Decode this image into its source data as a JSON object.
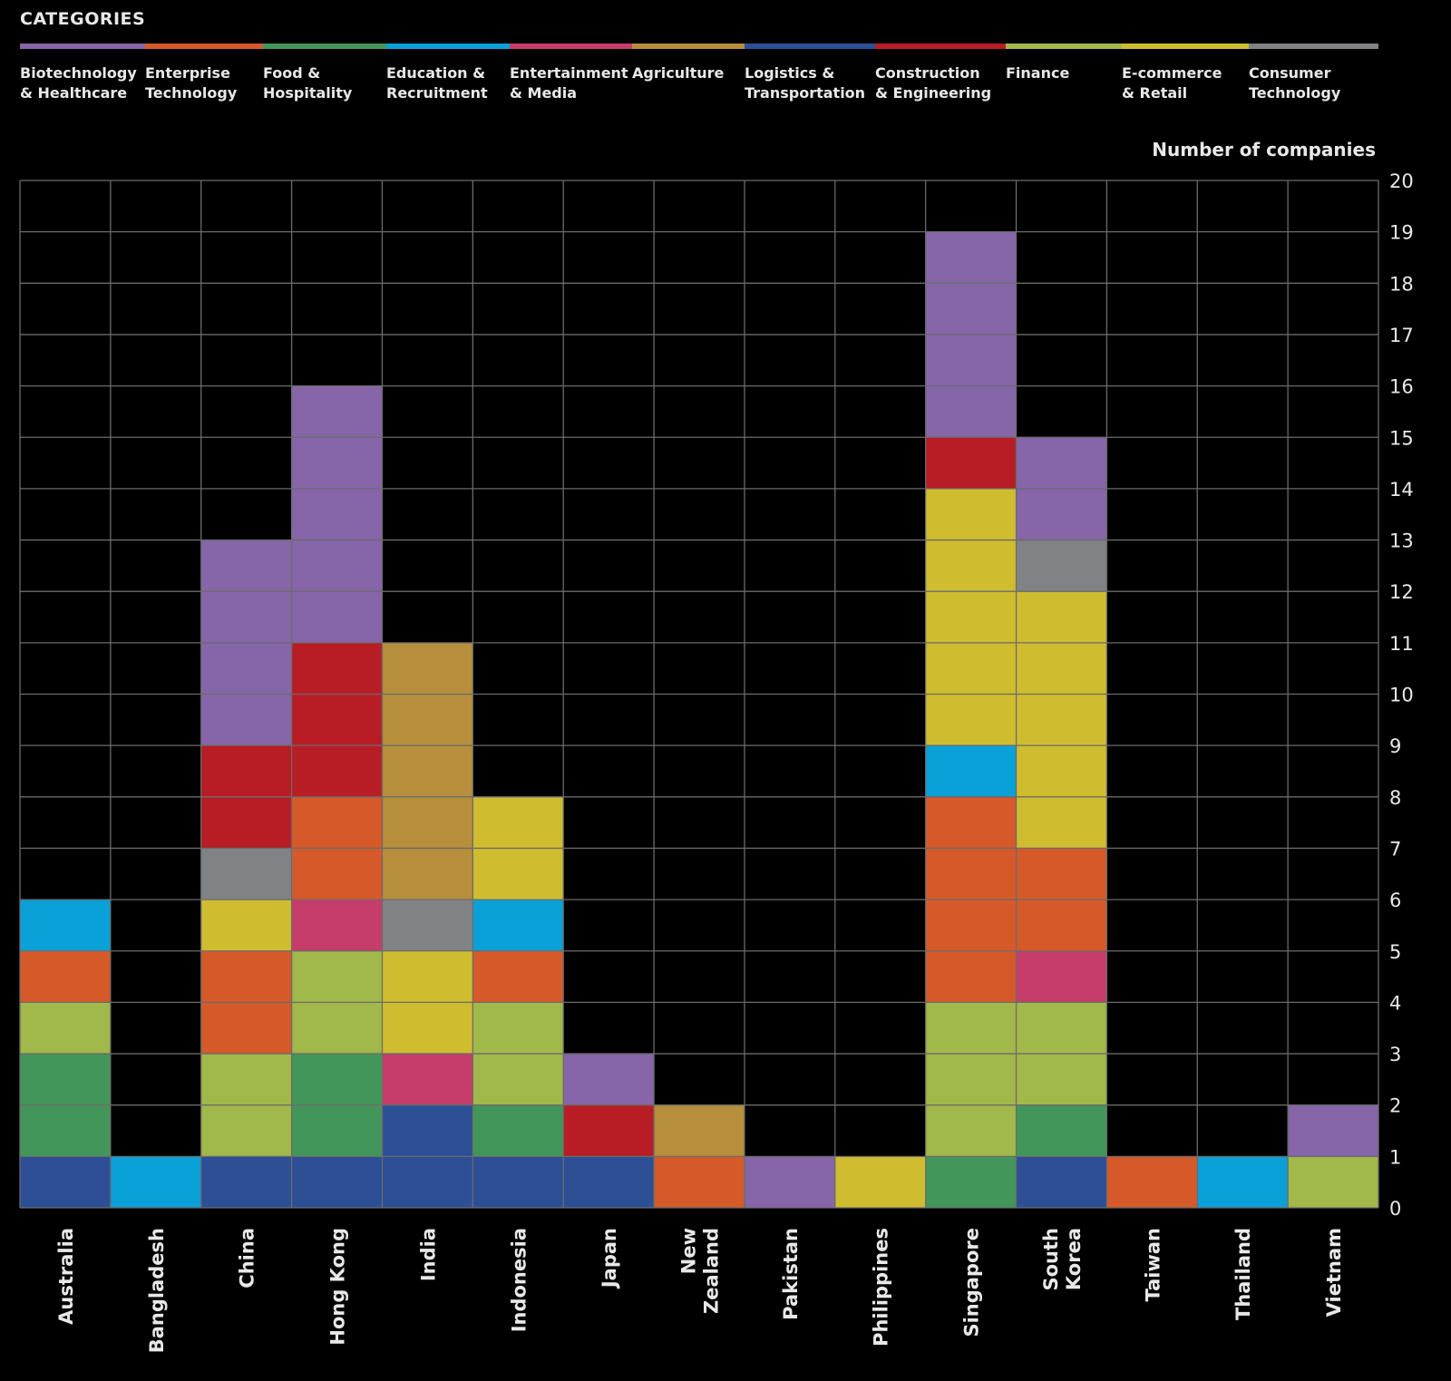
{
  "header": {
    "title": "CATEGORIES"
  },
  "categories": [
    {
      "label": [
        "Biotechnology",
        "& Healthcare"
      ],
      "color": "#8665a9"
    },
    {
      "label": [
        "Enterprise",
        "Technology"
      ],
      "color": "#d65a29"
    },
    {
      "label": [
        "Food &",
        "Hospitality"
      ],
      "color": "#43965a"
    },
    {
      "label": [
        "Education &",
        "Recruitment"
      ],
      "color": "#0aa0d8"
    },
    {
      "label": [
        "Entertainment",
        "& Media"
      ],
      "color": "#c63d6b"
    },
    {
      "label": [
        "Agriculture"
      ],
      "color": "#b68e3c"
    },
    {
      "label": [
        "Logistics &",
        "Transportation"
      ],
      "color": "#2c4f96"
    },
    {
      "label": [
        "Construction",
        "& Engineering"
      ],
      "color": "#b81c24"
    },
    {
      "label": [
        "Finance"
      ],
      "color": "#a1b84a"
    },
    {
      "label": [
        "E-commerce",
        "& Retail"
      ],
      "color": "#cfbd2f"
    },
    {
      "label": [
        "Consumer",
        "Technology"
      ],
      "color": "#808286"
    }
  ],
  "chart_data": {
    "type": "bar",
    "stacked": true,
    "ylabel": "Number of companies",
    "ylim": [
      0,
      20
    ],
    "yticks": [
      "0",
      "1",
      "2",
      "3",
      "4",
      "5",
      "6",
      "7",
      "8",
      "9",
      "10",
      "11",
      "12",
      "13",
      "14",
      "15",
      "16",
      "17",
      "18",
      "19",
      "20"
    ],
    "grid": true,
    "countries": [
      {
        "name": [
          "Australia"
        ],
        "stack": [
          {
            "category": "Logistics & Transportation",
            "value": 1
          },
          {
            "category": "Food & Hospitality",
            "value": 2
          },
          {
            "category": "Finance",
            "value": 1
          },
          {
            "category": "Enterprise Technology",
            "value": 1
          },
          {
            "category": "Education & Recruitment",
            "value": 1
          }
        ]
      },
      {
        "name": [
          "Bangladesh"
        ],
        "stack": [
          {
            "category": "Education & Recruitment",
            "value": 1
          }
        ]
      },
      {
        "name": [
          "China"
        ],
        "stack": [
          {
            "category": "Logistics & Transportation",
            "value": 1
          },
          {
            "category": "Finance",
            "value": 2
          },
          {
            "category": "Enterprise Technology",
            "value": 2
          },
          {
            "category": "E-commerce & Retail",
            "value": 1
          },
          {
            "category": "Consumer Technology",
            "value": 1
          },
          {
            "category": "Construction & Engineering",
            "value": 2
          },
          {
            "category": "Biotechnology & Healthcare",
            "value": 4
          }
        ]
      },
      {
        "name": [
          "Hong Kong"
        ],
        "stack": [
          {
            "category": "Logistics & Transportation",
            "value": 1
          },
          {
            "category": "Food & Hospitality",
            "value": 2
          },
          {
            "category": "Finance",
            "value": 2
          },
          {
            "category": "Entertainment & Media",
            "value": 1
          },
          {
            "category": "Enterprise Technology",
            "value": 2
          },
          {
            "category": "Construction & Engineering",
            "value": 3
          },
          {
            "category": "Biotechnology & Healthcare",
            "value": 5
          }
        ]
      },
      {
        "name": [
          "India"
        ],
        "stack": [
          {
            "category": "Logistics & Transportation",
            "value": 2
          },
          {
            "category": "Entertainment & Media",
            "value": 1
          },
          {
            "category": "E-commerce & Retail",
            "value": 2
          },
          {
            "category": "Consumer Technology",
            "value": 1
          },
          {
            "category": "Agriculture",
            "value": 5
          }
        ]
      },
      {
        "name": [
          "Indonesia"
        ],
        "stack": [
          {
            "category": "Logistics & Transportation",
            "value": 1
          },
          {
            "category": "Food & Hospitality",
            "value": 1
          },
          {
            "category": "Finance",
            "value": 2
          },
          {
            "category": "Enterprise Technology",
            "value": 1
          },
          {
            "category": "Education & Recruitment",
            "value": 1
          },
          {
            "category": "E-commerce & Retail",
            "value": 2
          }
        ]
      },
      {
        "name": [
          "Japan"
        ],
        "stack": [
          {
            "category": "Logistics & Transportation",
            "value": 1
          },
          {
            "category": "Construction & Engineering",
            "value": 1
          },
          {
            "category": "Biotechnology & Healthcare",
            "value": 1
          }
        ]
      },
      {
        "name": [
          "New",
          "Zealand"
        ],
        "stack": [
          {
            "category": "Enterprise Technology",
            "value": 1
          },
          {
            "category": "Agriculture",
            "value": 1
          }
        ]
      },
      {
        "name": [
          "Pakistan"
        ],
        "stack": [
          {
            "category": "Biotechnology & Healthcare",
            "value": 1
          }
        ]
      },
      {
        "name": [
          "Philippines"
        ],
        "stack": [
          {
            "category": "E-commerce & Retail",
            "value": 1
          }
        ]
      },
      {
        "name": [
          "Singapore"
        ],
        "stack": [
          {
            "category": "Food & Hospitality",
            "value": 1
          },
          {
            "category": "Finance",
            "value": 3
          },
          {
            "category": "Enterprise Technology",
            "value": 4
          },
          {
            "category": "Education & Recruitment",
            "value": 1
          },
          {
            "category": "E-commerce & Retail",
            "value": 5
          },
          {
            "category": "Construction & Engineering",
            "value": 1
          },
          {
            "category": "Biotechnology & Healthcare",
            "value": 4
          }
        ]
      },
      {
        "name": [
          "South",
          "Korea"
        ],
        "stack": [
          {
            "category": "Logistics & Transportation",
            "value": 1
          },
          {
            "category": "Food & Hospitality",
            "value": 1
          },
          {
            "category": "Finance",
            "value": 2
          },
          {
            "category": "Entertainment & Media",
            "value": 1
          },
          {
            "category": "Enterprise Technology",
            "value": 2
          },
          {
            "category": "E-commerce & Retail",
            "value": 5
          },
          {
            "category": "Consumer Technology",
            "value": 1
          },
          {
            "category": "Biotechnology & Healthcare",
            "value": 2
          }
        ]
      },
      {
        "name": [
          "Taiwan"
        ],
        "stack": [
          {
            "category": "Enterprise Technology",
            "value": 1
          }
        ]
      },
      {
        "name": [
          "Thailand"
        ],
        "stack": [
          {
            "category": "Education & Recruitment",
            "value": 1
          }
        ]
      },
      {
        "name": [
          "Vietnam"
        ],
        "stack": [
          {
            "category": "Finance",
            "value": 1
          },
          {
            "category": "Biotechnology & Healthcare",
            "value": 1
          }
        ]
      }
    ]
  }
}
